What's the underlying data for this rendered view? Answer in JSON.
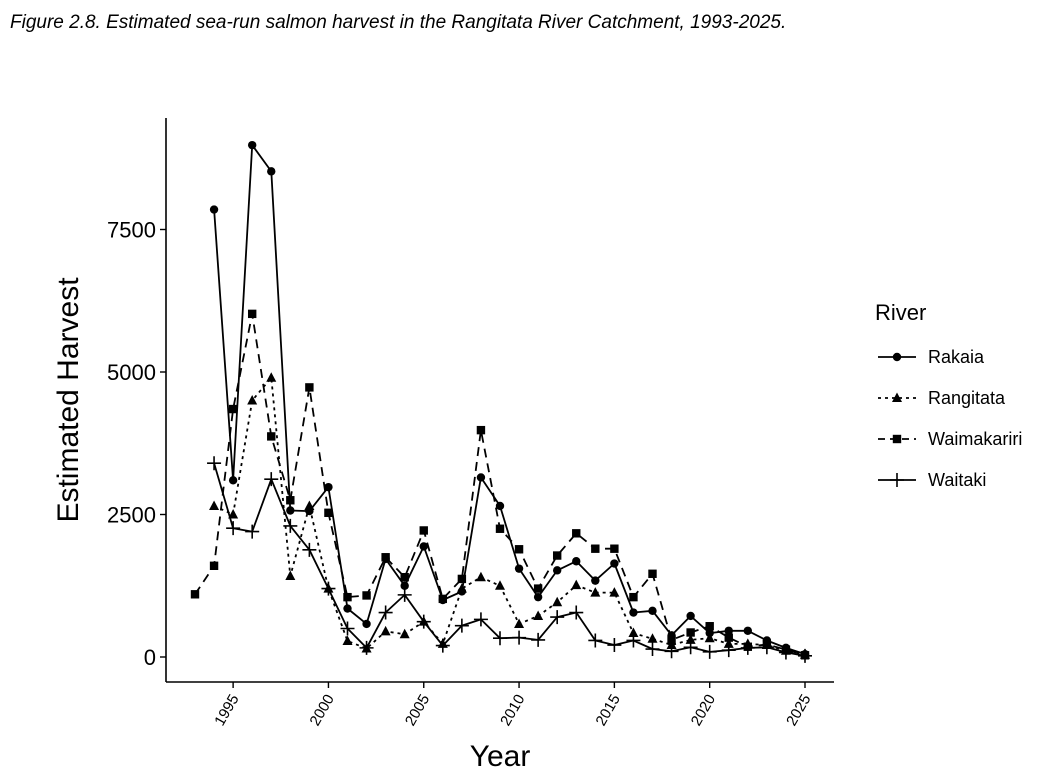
{
  "figure": {
    "caption": "Figure 2.8. Estimated sea-run salmon harvest in the Rangitata River Catchment, 1993-2025."
  },
  "chart_data": {
    "type": "line",
    "xlabel": "Year",
    "ylabel": "Estimated Harvest",
    "xlim": [
      1993,
      2025
    ],
    "ylim": [
      0,
      9000
    ],
    "xticks": [
      1995,
      2000,
      2005,
      2010,
      2015,
      2020,
      2025
    ],
    "yticks": [
      0,
      2500,
      5000,
      7500
    ],
    "grid": false,
    "legend": {
      "title": "River",
      "position": "right"
    },
    "series": [
      {
        "name": "Rakaia",
        "line": "solid",
        "marker": "circle",
        "x": [
          1994,
          1995,
          1996,
          1997,
          1998,
          1999,
          2000,
          2001,
          2002,
          2003,
          2004,
          2005,
          2006,
          2007,
          2008,
          2009,
          2010,
          2011,
          2012,
          2013,
          2014,
          2015,
          2016,
          2017,
          2018,
          2019,
          2020,
          2021,
          2022,
          2023,
          2024,
          2025
        ],
        "values": [
          7850,
          3100,
          8980,
          8520,
          2570,
          2560,
          2980,
          850,
          580,
          1720,
          1250,
          1940,
          1000,
          1150,
          3150,
          2650,
          1550,
          1050,
          1520,
          1680,
          1340,
          1640,
          780,
          810,
          380,
          720,
          420,
          460,
          460,
          290,
          160,
          50
        ]
      },
      {
        "name": "Rangitata",
        "line": "dotted",
        "marker": "triangle",
        "x": [
          1994,
          1995,
          1996,
          1997,
          1998,
          1999,
          2000,
          2001,
          2002,
          2003,
          2004,
          2005,
          2006,
          2007,
          2008,
          2009,
          2010,
          2011,
          2012,
          2013,
          2014,
          2015,
          2016,
          2017,
          2018,
          2019,
          2020,
          2021,
          2022,
          2023,
          2024,
          2025
        ],
        "values": [
          2650,
          2500,
          4500,
          4900,
          1420,
          2650,
          1200,
          280,
          150,
          450,
          400,
          620,
          230,
          1200,
          1400,
          1250,
          580,
          720,
          960,
          1260,
          1130,
          1130,
          420,
          320,
          210,
          300,
          330,
          230,
          230,
          210,
          110,
          40
        ]
      },
      {
        "name": "Waimakariri",
        "line": "dashed",
        "marker": "square",
        "x": [
          1993,
          1994,
          1995,
          1996,
          1997,
          1998,
          1999,
          2000,
          2001,
          2002,
          2003,
          2004,
          2005,
          2006,
          2007,
          2008,
          2009,
          2010,
          2011,
          2012,
          2013,
          2014,
          2015,
          2016,
          2017,
          2018,
          2019,
          2020,
          2021,
          2022,
          2023,
          2024,
          2025
        ],
        "values": [
          1100,
          1600,
          4350,
          6020,
          3870,
          2750,
          4730,
          2530,
          1050,
          1080,
          1750,
          1400,
          2220,
          1020,
          1370,
          3980,
          2250,
          1890,
          1200,
          1780,
          2170,
          1900,
          1900,
          1050,
          1460,
          300,
          430,
          540,
          340,
          180,
          220,
          130,
          30
        ]
      },
      {
        "name": "Waitaki",
        "line": "solid",
        "marker": "plus",
        "x": [
          1994,
          1995,
          1996,
          1997,
          1998,
          1999,
          2000,
          2001,
          2002,
          2003,
          2004,
          2005,
          2006,
          2007,
          2008,
          2009,
          2010,
          2011,
          2012,
          2013,
          2014,
          2015,
          2016,
          2017,
          2018,
          2019,
          2020,
          2021,
          2022,
          2023,
          2024,
          2025
        ],
        "values": [
          3400,
          2260,
          2200,
          3120,
          2300,
          1880,
          1200,
          500,
          160,
          780,
          1090,
          620,
          200,
          550,
          660,
          330,
          340,
          300,
          700,
          780,
          290,
          210,
          290,
          140,
          100,
          170,
          90,
          120,
          160,
          170,
          80,
          20
        ]
      }
    ]
  }
}
